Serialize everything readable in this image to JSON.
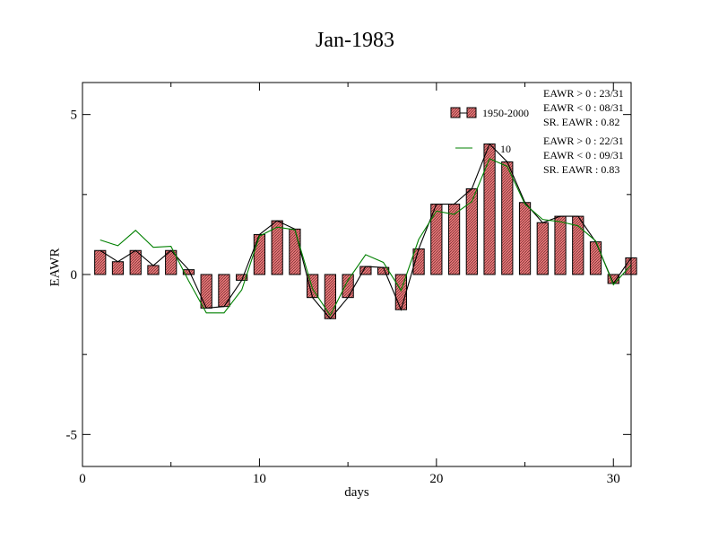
{
  "chart_data": {
    "type": "bar",
    "title": "Jan-1983",
    "xlabel": "days",
    "ylabel": "EAWR",
    "xlim": [
      0,
      31
    ],
    "ylim": [
      -6,
      6
    ],
    "xticks": [
      "0",
      "10",
      "20",
      "30"
    ],
    "yticks": [
      "-5",
      "0",
      "5"
    ],
    "x": [
      1,
      2,
      3,
      4,
      5,
      6,
      7,
      8,
      9,
      10,
      11,
      12,
      13,
      14,
      15,
      16,
      17,
      18,
      19,
      20,
      21,
      22,
      23,
      24,
      25,
      26,
      27,
      28,
      29,
      30,
      31
    ],
    "series": [
      {
        "name": "1950-2000",
        "kind": "bar",
        "color": "#e8777a",
        "values": [
          0.75,
          0.4,
          0.75,
          0.28,
          0.75,
          0.15,
          -1.05,
          -1.0,
          -0.18,
          1.25,
          1.68,
          1.42,
          -0.72,
          -1.38,
          -0.72,
          0.25,
          0.22,
          -1.1,
          0.8,
          2.2,
          2.2,
          2.68,
          4.08,
          3.52,
          2.25,
          1.62,
          1.82,
          1.82,
          1.02,
          -0.28,
          0.52
        ]
      },
      {
        "name": "",
        "kind": "line",
        "color": "#000000",
        "values": [
          0.75,
          0.4,
          0.75,
          0.28,
          0.75,
          0.15,
          -1.05,
          -1.0,
          -0.18,
          1.25,
          1.68,
          1.42,
          -0.72,
          -1.38,
          -0.72,
          0.25,
          0.22,
          -1.1,
          0.8,
          2.2,
          2.2,
          2.68,
          4.08,
          3.52,
          2.25,
          1.62,
          1.82,
          1.82,
          1.02,
          -0.28,
          0.52
        ]
      },
      {
        "name": "10",
        "kind": "line",
        "color": "#008000",
        "values": [
          1.08,
          0.9,
          1.38,
          0.85,
          0.88,
          -0.2,
          -1.2,
          -1.2,
          -0.48,
          1.2,
          1.48,
          1.4,
          -0.45,
          -1.28,
          -0.18,
          0.62,
          0.38,
          -0.5,
          1.1,
          1.98,
          1.88,
          2.28,
          3.62,
          3.38,
          2.2,
          1.72,
          1.65,
          1.52,
          1.05,
          -0.32,
          0.3
        ]
      }
    ],
    "stats": [
      [
        "EAWR > 0 : 23/31",
        "EAWR < 0 : 08/31",
        "SR. EAWR :  0.82"
      ],
      [
        "EAWR > 0 : 22/31",
        "EAWR < 0 : 09/31",
        "SR. EAWR :  0.83"
      ]
    ],
    "legend": "top-right"
  }
}
